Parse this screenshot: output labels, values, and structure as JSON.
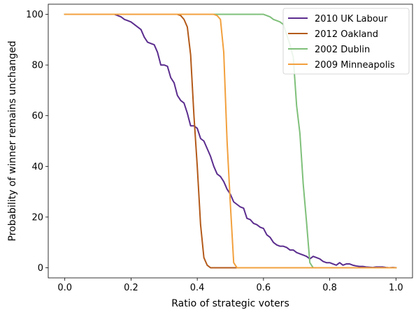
{
  "chart_data": {
    "type": "line",
    "title": "",
    "xlabel": "Ratio of strategic voters",
    "ylabel": "Probability of winner remains unchanged",
    "xlim": [
      -0.05,
      1.05
    ],
    "ylim": [
      -4,
      104
    ],
    "xticks": [
      0.0,
      0.2,
      0.4,
      0.6,
      0.8,
      1.0
    ],
    "xtick_labels": [
      "0.0",
      "0.2",
      "0.4",
      "0.6",
      "0.8",
      "1.0"
    ],
    "yticks": [
      0,
      20,
      40,
      60,
      80,
      100
    ],
    "ytick_labels": [
      "0",
      "20",
      "40",
      "60",
      "80",
      "100"
    ],
    "grid": false,
    "legend_position": "top-right",
    "series": [
      {
        "name": "2010 UK Labour",
        "color": "#5b2d8e",
        "x": [
          0.0,
          0.15,
          0.16,
          0.17,
          0.18,
          0.19,
          0.2,
          0.21,
          0.22,
          0.23,
          0.24,
          0.25,
          0.26,
          0.27,
          0.28,
          0.29,
          0.3,
          0.31,
          0.32,
          0.33,
          0.34,
          0.35,
          0.36,
          0.37,
          0.38,
          0.39,
          0.4,
          0.41,
          0.42,
          0.43,
          0.44,
          0.45,
          0.46,
          0.47,
          0.48,
          0.49,
          0.5,
          0.51,
          0.52,
          0.53,
          0.54,
          0.55,
          0.56,
          0.57,
          0.58,
          0.59,
          0.6,
          0.61,
          0.62,
          0.63,
          0.64,
          0.65,
          0.66,
          0.67,
          0.68,
          0.69,
          0.7,
          0.71,
          0.72,
          0.73,
          0.74,
          0.75,
          0.76,
          0.77,
          0.78,
          0.79,
          0.8,
          0.81,
          0.82,
          0.83,
          0.84,
          0.85,
          0.86,
          0.87,
          0.88,
          0.89,
          0.9,
          0.91,
          0.92,
          0.93,
          0.94,
          0.95,
          0.96,
          0.97,
          0.98,
          0.99,
          1.0
        ],
        "y": [
          100,
          100,
          99.5,
          99,
          98,
          97.5,
          97,
          96,
          95,
          94,
          91,
          89,
          88.5,
          88,
          85,
          80,
          80,
          79.5,
          75,
          73,
          68,
          66,
          65,
          61,
          56,
          56,
          55,
          51,
          50,
          47,
          44,
          40,
          37,
          36,
          34,
          31,
          29,
          26,
          25,
          24,
          23.5,
          19.5,
          19,
          17.5,
          17,
          16,
          15.5,
          13,
          12,
          10,
          9,
          8.5,
          8.5,
          8,
          7,
          7,
          6,
          5.5,
          5,
          4.5,
          3.5,
          4.5,
          4,
          3.5,
          2.5,
          2,
          2,
          1.5,
          1,
          2,
          1,
          1.5,
          1.5,
          1,
          0.7,
          0.5,
          0.5,
          0.3,
          0.2,
          0.1,
          0.3,
          0.3,
          0.3,
          0.1,
          0,
          0.1,
          0
        ]
      },
      {
        "name": "2012 Oakland",
        "color": "#b35a1a",
        "x": [
          0.0,
          0.34,
          0.35,
          0.36,
          0.37,
          0.38,
          0.39,
          0.4,
          0.41,
          0.42,
          0.43,
          0.44,
          0.45,
          0.5,
          1.0
        ],
        "y": [
          100,
          100,
          99.5,
          98,
          95,
          84,
          60,
          40,
          17,
          4,
          1,
          0,
          0,
          0,
          0
        ]
      },
      {
        "name": "2002 Dublin",
        "color": "#7fc07a",
        "x": [
          0.0,
          0.6,
          0.61,
          0.62,
          0.63,
          0.64,
          0.65,
          0.66,
          0.67,
          0.68,
          0.69,
          0.7,
          0.71,
          0.72,
          0.73,
          0.74,
          0.75,
          1.0
        ],
        "y": [
          100,
          100,
          99.5,
          99,
          98,
          97.5,
          97,
          96,
          92,
          88,
          83,
          64,
          53,
          33,
          18,
          2,
          0,
          0
        ]
      },
      {
        "name": "2009 Minneapolis",
        "color": "#f2a03d",
        "x": [
          0.0,
          0.45,
          0.46,
          0.47,
          0.48,
          0.49,
          0.5,
          0.51,
          0.52,
          0.53,
          1.0
        ],
        "y": [
          100,
          100,
          99.5,
          98,
          85,
          50,
          25,
          2,
          0,
          0,
          0
        ]
      }
    ]
  }
}
